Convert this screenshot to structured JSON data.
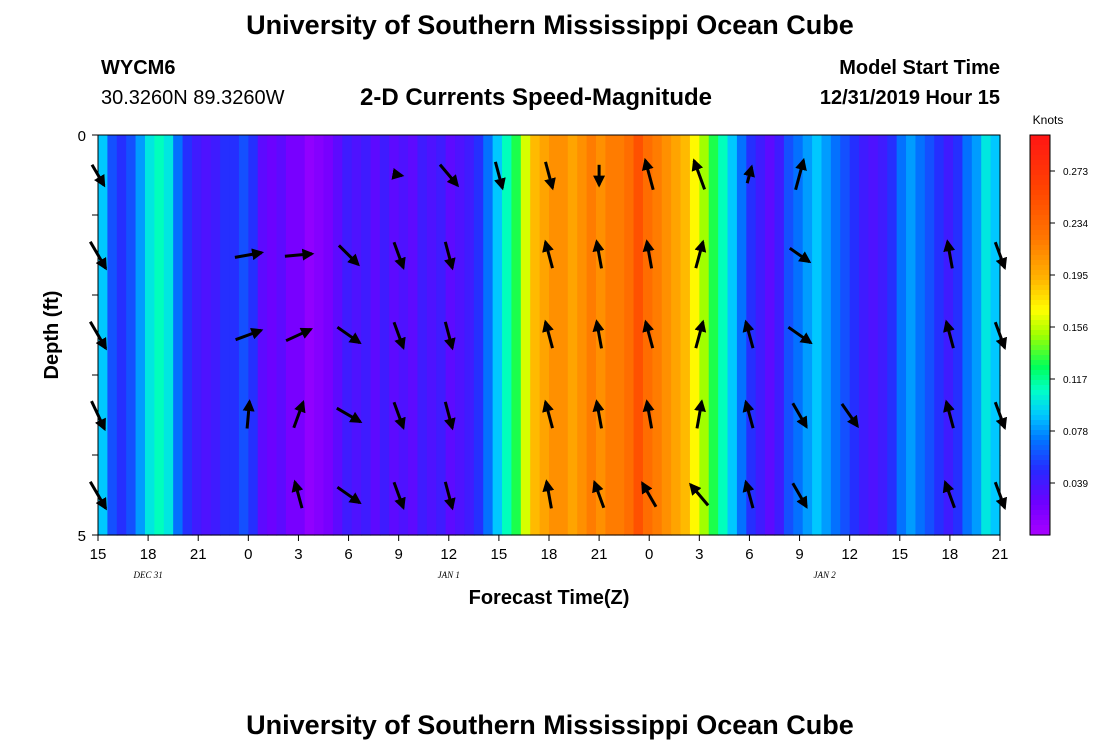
{
  "header": {
    "title": "University of Southern Mississippi Ocean Cube",
    "station_id": "WYCM6",
    "coordinates": "30.3260N 89.3260W",
    "plot_title": "2-D Currents Speed-Magnitude",
    "model_start_label": "Model Start Time",
    "model_start_value": "12/31/2019 Hour 15"
  },
  "footer": {
    "title": "University of Southern Mississippi Ocean Cube"
  },
  "chart_data": {
    "type": "heatmap",
    "title": "2-D Currents Speed-Magnitude",
    "xlabel": "Forecast Time(Z)",
    "ylabel": "Depth (ft)",
    "ylim": [
      0,
      5
    ],
    "y_tick_labels": [
      "0",
      "5"
    ],
    "y_levels": 5,
    "x_start_hour": 15,
    "x_hours": 54,
    "x_tick_labels": [
      "15",
      "18",
      "21",
      "0",
      "3",
      "6",
      "9",
      "12",
      "15",
      "18",
      "21",
      "0",
      "3",
      "6",
      "9",
      "12",
      "15",
      "18",
      "21"
    ],
    "date_labels": [
      {
        "text": "DEC 31",
        "hour": 3
      },
      {
        "text": "JAN 1",
        "hour": 21
      },
      {
        "text": "JAN 2",
        "hour": 43.5
      }
    ],
    "colorbar": {
      "unit": "Knots",
      "min": 0.0,
      "max": 0.3,
      "ticks": [
        "0.273",
        "0.234",
        "0.195",
        "0.156",
        "0.117",
        "0.078",
        "0.039"
      ],
      "tick_values": [
        0.273,
        0.234,
        0.195,
        0.156,
        0.117,
        0.078,
        0.039
      ]
    },
    "speed_profile": [
      0.09,
      0.06,
      0.05,
      0.06,
      0.08,
      0.1,
      0.11,
      0.1,
      0.07,
      0.05,
      0.04,
      0.035,
      0.04,
      0.05,
      0.05,
      0.06,
      0.05,
      0.03,
      0.025,
      0.03,
      0.02,
      0.02,
      0.01,
      0.015,
      0.02,
      0.03,
      0.04,
      0.035,
      0.04,
      0.03,
      0.04,
      0.03,
      0.035,
      0.03,
      0.04,
      0.035,
      0.04,
      0.03,
      0.035,
      0.04,
      0.05,
      0.07,
      0.09,
      0.11,
      0.13,
      0.16,
      0.19,
      0.2,
      0.21,
      0.21,
      0.2,
      0.21,
      0.22,
      0.21,
      0.22,
      0.22,
      0.23,
      0.25,
      0.23,
      0.22,
      0.21,
      0.2,
      0.19,
      0.17,
      0.15,
      0.13,
      0.11,
      0.09,
      0.07,
      0.05,
      0.04,
      0.03,
      0.04,
      0.06,
      0.07,
      0.08,
      0.09,
      0.08,
      0.07,
      0.06,
      0.05,
      0.04,
      0.035,
      0.04,
      0.05,
      0.07,
      0.08,
      0.07,
      0.06,
      0.05,
      0.04,
      0.05,
      0.07,
      0.08,
      0.1,
      0.09
    ],
    "depth_profiles": [
      [
        1.0,
        1.0,
        1.0,
        1.0,
        1.0,
        1.0,
        1.0,
        1.0,
        1.0,
        1.0,
        1.0,
        1.0,
        1.0,
        1.0,
        1.0,
        1.0,
        1.0,
        1.0,
        1.0,
        1.0,
        1.0,
        1.0,
        1.0,
        1.0,
        1.0,
        1.0,
        1.0,
        1.0,
        1.0,
        1.0,
        1.0,
        1.0,
        1.0,
        1.0,
        1.0,
        1.0,
        1.0,
        1.0,
        1.0,
        1.0,
        1.0,
        1.0,
        1.0,
        1.0,
        1.0,
        1.0,
        1.0,
        1.0,
        1.0,
        1.0,
        1.0,
        1.0,
        1.0,
        1.0,
        1.0
      ],
      [
        1.0,
        1.0,
        1.0,
        1.0,
        1.0,
        1.0,
        1.0,
        1.0,
        1.0,
        1.0,
        1.0,
        1.0,
        1.0,
        1.0,
        1.0,
        1.0,
        1.0,
        1.0,
        1.0,
        1.0,
        1.0,
        1.0,
        1.0,
        1.0,
        1.0,
        1.0,
        1.0,
        1.0,
        1.0,
        1.0,
        1.0,
        1.0,
        1.0,
        1.0,
        1.0,
        1.0,
        1.0,
        1.0,
        1.0,
        1.0,
        1.0,
        1.0,
        1.0,
        1.0,
        1.0,
        1.0,
        1.0,
        1.0,
        1.0,
        1.0,
        1.0,
        1.0,
        1.0,
        1.0,
        1.0
      ],
      [
        1.0,
        1.0,
        1.0,
        1.0,
        1.0,
        1.0,
        1.0,
        1.0,
        1.0,
        1.0,
        1.0,
        1.0,
        1.0,
        1.0,
        1.0,
        1.0,
        1.0,
        1.0,
        1.0,
        1.0,
        1.0,
        1.0,
        1.0,
        1.0,
        1.0,
        1.0,
        1.0,
        1.0,
        1.0,
        1.0,
        1.0,
        1.0,
        1.0,
        1.0,
        1.0,
        1.0,
        1.0,
        1.0,
        1.0,
        1.0,
        1.0,
        1.0,
        1.0,
        1.0,
        1.0,
        1.0,
        1.0,
        1.0,
        1.0,
        1.0,
        1.0,
        1.0,
        1.0,
        1.0,
        1.0
      ],
      [
        1.0,
        1.0,
        1.0,
        1.0,
        1.0,
        1.0,
        1.0,
        1.0,
        1.0,
        1.0,
        1.0,
        1.0,
        1.0,
        1.0,
        1.0,
        1.0,
        1.0,
        1.0,
        1.0,
        1.0,
        1.0,
        1.0,
        1.0,
        1.0,
        1.0,
        1.0,
        1.0,
        1.0,
        1.0,
        1.0,
        1.0,
        1.0,
        1.0,
        1.0,
        1.0,
        1.0,
        1.0,
        1.0,
        1.0,
        1.0,
        1.0,
        1.0,
        1.0,
        1.0,
        1.0,
        1.0,
        1.0,
        1.0,
        1.0,
        1.0,
        1.0,
        1.0,
        1.0,
        1.0,
        1.0
      ],
      [
        1.0,
        1.0,
        1.0,
        1.0,
        1.0,
        1.0,
        1.0,
        1.0,
        1.0,
        1.0,
        1.0,
        1.0,
        1.0,
        1.0,
        1.0,
        1.0,
        1.0,
        1.0,
        1.0,
        1.0,
        1.0,
        1.0,
        1.0,
        1.0,
        1.0,
        1.0,
        1.0,
        1.0,
        1.0,
        1.0,
        1.0,
        1.0,
        1.0,
        1.0,
        1.0,
        1.0,
        1.0,
        1.0,
        1.0,
        1.0,
        1.0,
        1.0,
        1.0,
        1.0,
        1.0,
        1.0,
        1.0,
        1.0,
        1.0,
        1.0,
        1.0,
        1.0,
        1.0,
        1.0,
        1.0
      ]
    ],
    "vector_hours": [
      0,
      3,
      6,
      9,
      12,
      15,
      18,
      21,
      24,
      27,
      30,
      33,
      36,
      39,
      42,
      45,
      48,
      51,
      54
    ],
    "vectors": [
      [
        [
          150,
          0.7
        ],
        [
          0,
          0
        ],
        [
          0,
          0
        ],
        [
          0,
          0
        ],
        [
          0,
          0
        ],
        [
          0,
          0
        ],
        [
          100,
          0.2
        ],
        [
          140,
          0.8
        ],
        [
          165,
          0.8
        ],
        [
          165,
          0.8
        ],
        [
          180,
          0.6
        ],
        [
          345,
          0.9
        ],
        [
          340,
          0.9
        ],
        [
          15,
          0.5
        ],
        [
          15,
          0.9
        ],
        [
          150,
          0.0
        ],
        [
          0,
          0
        ],
        [
          0,
          0
        ],
        [
          160,
          0.0
        ]
      ],
      [
        [
          150,
          0.9
        ],
        [
          0,
          0
        ],
        [
          0,
          0
        ],
        [
          80,
          0.8
        ],
        [
          85,
          0.8
        ],
        [
          135,
          0.8
        ],
        [
          160,
          0.8
        ],
        [
          165,
          0.8
        ],
        [
          0,
          0
        ],
        [
          345,
          0.8
        ],
        [
          350,
          0.8
        ],
        [
          350,
          0.8
        ],
        [
          15,
          0.8
        ],
        [
          0,
          0
        ],
        [
          125,
          0.7
        ],
        [
          0,
          0
        ],
        [
          0,
          0
        ],
        [
          350,
          0.8
        ],
        [
          160,
          0.8
        ]
      ],
      [
        [
          150,
          0.9
        ],
        [
          0,
          0
        ],
        [
          0,
          0
        ],
        [
          70,
          0.8
        ],
        [
          65,
          0.8
        ],
        [
          125,
          0.8
        ],
        [
          160,
          0.8
        ],
        [
          165,
          0.8
        ],
        [
          0,
          0
        ],
        [
          345,
          0.8
        ],
        [
          350,
          0.8
        ],
        [
          345,
          0.8
        ],
        [
          15,
          0.8
        ],
        [
          345,
          0.8
        ],
        [
          125,
          0.8
        ],
        [
          0,
          0
        ],
        [
          0,
          0
        ],
        [
          345,
          0.8
        ],
        [
          160,
          0.8
        ]
      ],
      [
        [
          155,
          0.9
        ],
        [
          0,
          0
        ],
        [
          0,
          0
        ],
        [
          5,
          0.8
        ],
        [
          20,
          0.8
        ],
        [
          120,
          0.8
        ],
        [
          160,
          0.8
        ],
        [
          165,
          0.8
        ],
        [
          0,
          0
        ],
        [
          345,
          0.8
        ],
        [
          350,
          0.8
        ],
        [
          350,
          0.8
        ],
        [
          10,
          0.8
        ],
        [
          345,
          0.8
        ],
        [
          150,
          0.8
        ],
        [
          145,
          0.8
        ],
        [
          0,
          0
        ],
        [
          345,
          0.8
        ],
        [
          160,
          0.8
        ]
      ],
      [
        [
          150,
          0.9
        ],
        [
          0,
          0
        ],
        [
          0,
          0
        ],
        [
          0,
          0
        ],
        [
          345,
          0.8
        ],
        [
          125,
          0.8
        ],
        [
          160,
          0.8
        ],
        [
          165,
          0.8
        ],
        [
          0,
          0
        ],
        [
          350,
          0.8
        ],
        [
          340,
          0.8
        ],
        [
          330,
          0.8
        ],
        [
          320,
          0.8
        ],
        [
          345,
          0.8
        ],
        [
          150,
          0.8
        ],
        [
          0,
          0
        ],
        [
          0,
          0
        ],
        [
          340,
          0.8
        ],
        [
          160,
          0.8
        ]
      ]
    ]
  }
}
